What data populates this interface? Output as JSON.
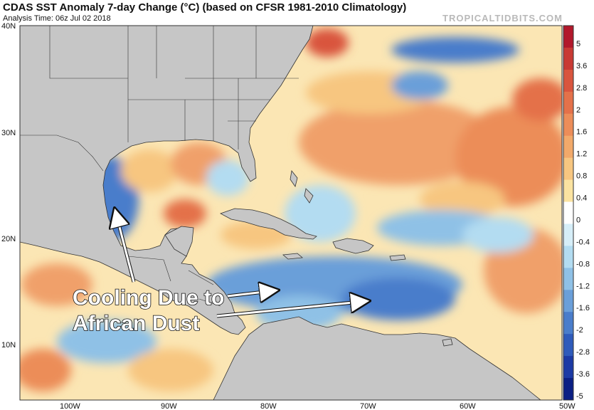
{
  "header": {
    "title": "CDAS SST Anomaly 7-day Change (°C) (based on CFSR 1981-2010 Climatology)",
    "subtitle": "Analysis Time: 06z Jul 02 2018",
    "brand": "TROPICALTIDBITS.COM"
  },
  "axes": {
    "lat_labels": [
      "40N",
      "30N",
      "20N",
      "10N"
    ],
    "lon_labels": [
      "100W",
      "90W",
      "80W",
      "70W",
      "60W",
      "50W"
    ]
  },
  "colorbar": {
    "labels": [
      "5",
      "3.6",
      "2.8",
      "2",
      "1.6",
      "1.2",
      "0.8",
      "0.4",
      "0",
      "-0.4",
      "-0.8",
      "-1.2",
      "-1.6",
      "-2",
      "-2.8",
      "-3.6",
      "-5"
    ],
    "colors": [
      "#b2182b",
      "#c93a34",
      "#d9553e",
      "#e4714a",
      "#ec8d59",
      "#f2a96a",
      "#f7c680",
      "#fbe3a1",
      "#ffffff",
      "#d6eef8",
      "#b3dcf1",
      "#8fc1e6",
      "#6a9fd9",
      "#4a7dcb",
      "#2f5bbb",
      "#1c3aa5",
      "#0b1f84"
    ]
  },
  "annotation": {
    "line1": "Cooling Due to",
    "line2": "African Dust"
  },
  "colors": {
    "land": "#c6c6c6",
    "border": "#333333",
    "warm": "#f0a06a",
    "cool": "#6a9fd9"
  }
}
